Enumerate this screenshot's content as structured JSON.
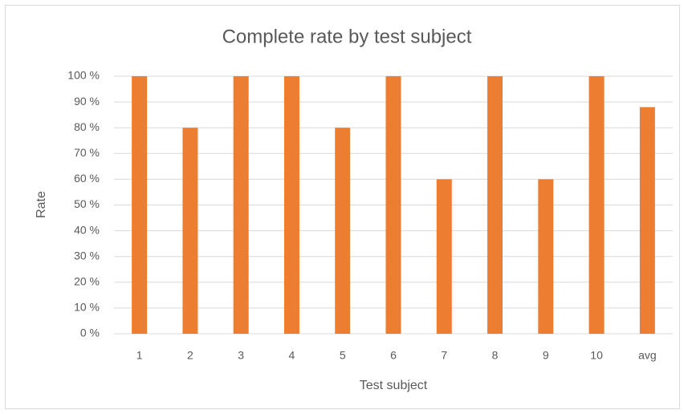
{
  "chart_data": {
    "type": "bar",
    "title": "Complete rate by test subject",
    "x_label": "Test subject",
    "y_label": "Rate",
    "categories": [
      "1",
      "2",
      "3",
      "4",
      "5",
      "6",
      "7",
      "8",
      "9",
      "10",
      "avg"
    ],
    "values": [
      100,
      80,
      100,
      100,
      80,
      100,
      60,
      100,
      60,
      100,
      88
    ],
    "color": "#ed7d31",
    "ylim": [
      0,
      100
    ],
    "yticks": [
      {
        "value": 0,
        "label": "0 %"
      },
      {
        "value": 10,
        "label": "10 %"
      },
      {
        "value": 20,
        "label": "20 %"
      },
      {
        "value": 30,
        "label": "30 %"
      },
      {
        "value": 40,
        "label": "40 %"
      },
      {
        "value": 50,
        "label": "50 %"
      },
      {
        "value": 60,
        "label": "60 %"
      },
      {
        "value": 70,
        "label": "70 %"
      },
      {
        "value": 80,
        "label": "80 %"
      },
      {
        "value": 90,
        "label": "90 %"
      },
      {
        "value": 100,
        "label": "100 %"
      }
    ],
    "grid": true
  }
}
